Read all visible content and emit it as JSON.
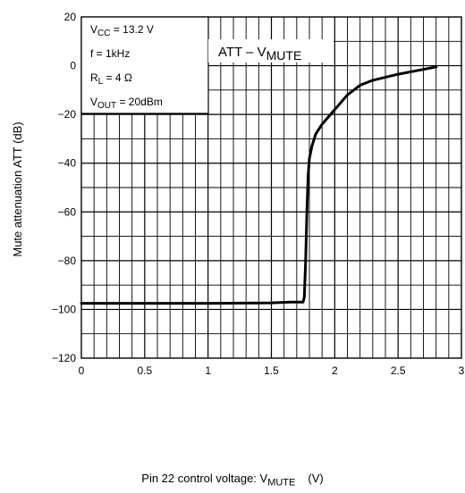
{
  "chart_data": {
    "type": "line",
    "title": "ATT – V",
    "title_sub": "MUTE",
    "xlabel": "Pin 22 control voltage: V",
    "xlabel_sub": "MUTE",
    "xlabel_unit": "(V)",
    "ylabel": "Mute attenuation   ATT   (dB)",
    "xlim": [
      0,
      3
    ],
    "ylim": [
      -120,
      20
    ],
    "x_ticks": [
      "0",
      "0.5",
      "1",
      "1.5",
      "2",
      "2.5",
      "3"
    ],
    "y_ticks": [
      "20",
      "0",
      "−20",
      "−40",
      "−60",
      "−80",
      "−100",
      "−120"
    ],
    "grid": true,
    "conditions": [
      {
        "main": "V",
        "sub": "CC",
        "rest": " = 13.2 V"
      },
      {
        "main": "f = 1kHz",
        "sub": "",
        "rest": ""
      },
      {
        "main": "R",
        "sub": "L",
        "rest": " = 4 Ω"
      },
      {
        "main": "V",
        "sub": "OUT",
        "rest": " = 20dBm"
      }
    ],
    "series": [
      {
        "x": [
          0,
          0.5,
          1.0,
          1.5,
          1.65,
          1.75,
          1.76,
          1.77,
          1.78,
          1.79,
          1.8,
          1.82,
          1.85,
          1.9,
          1.95,
          2.0,
          2.1,
          2.2,
          2.3,
          2.5,
          2.7,
          2.8
        ],
        "y": [
          -97.5,
          -97.5,
          -97.5,
          -97.3,
          -97,
          -97,
          -95,
          -80,
          -60,
          -45,
          -38,
          -33,
          -28,
          -24,
          -21,
          -18,
          -12,
          -8,
          -6,
          -3.5,
          -1.5,
          -0.5
        ]
      }
    ]
  }
}
